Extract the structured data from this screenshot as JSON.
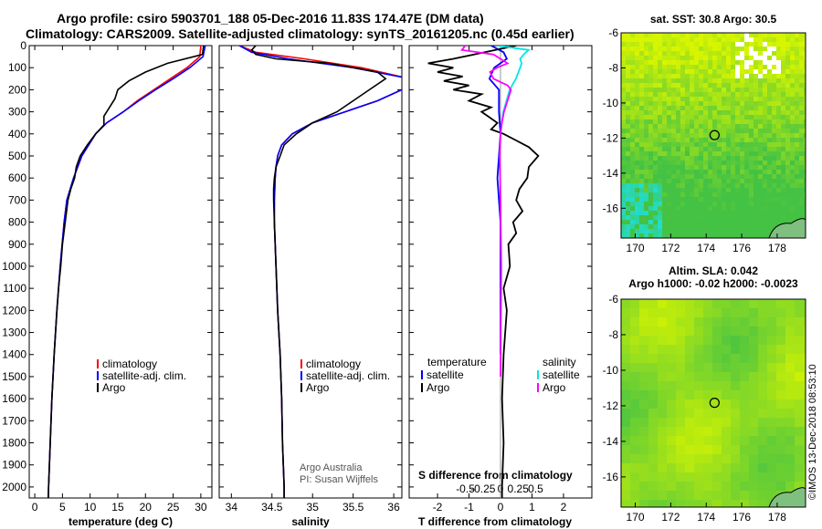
{
  "header": {
    "line1": "Argo profile: csiro 5903701_188 05-Dec-2016 11.83S 174.47E (DM data)",
    "line2": "Climatology: CARS2009. Satellite-adjusted climatology: synTS_20161205.nc (0.45d earlier)"
  },
  "credit": "©IMOS 13-Dec-2018 08:53:10",
  "colors": {
    "climatology": "#ff0000",
    "satellite": "#0000ff",
    "argo": "#000000",
    "salinity_satellite": "#00e5e5",
    "salinity_argo": "#ff00ff",
    "map_green": "#44c244",
    "map_yellow": "#d8f500",
    "map_cyan": "#22ddd0",
    "land": "#7fbf7f"
  },
  "chart_data": [
    {
      "type": "line",
      "name": "temperature-profile",
      "xlabel": "temperature (deg C)",
      "ylabel": "",
      "xlim": [
        -1,
        32
      ],
      "ylim": [
        2050,
        0
      ],
      "xticks": [
        "0",
        "5",
        "10",
        "15",
        "20",
        "25",
        "30"
      ],
      "xtick_values": [
        0,
        5,
        10,
        15,
        20,
        25,
        30
      ],
      "yticks": [
        "0",
        "100",
        "200",
        "300",
        "400",
        "500",
        "600",
        "700",
        "800",
        "900",
        "1000",
        "1100",
        "1200",
        "1300",
        "1400",
        "1500",
        "1600",
        "1700",
        "1800",
        "1900",
        "2000"
      ],
      "ytick_values": [
        0,
        100,
        200,
        300,
        400,
        500,
        600,
        700,
        800,
        900,
        1000,
        1100,
        1200,
        1300,
        1400,
        1500,
        1600,
        1700,
        1800,
        1900,
        2000
      ],
      "legend": {
        "position": "lower-right",
        "entries": [
          "climatology",
          "satellite-adj. clim.",
          "Argo"
        ]
      },
      "series": [
        {
          "name": "climatology",
          "depth": [
            0,
            50,
            100,
            150,
            200,
            250,
            300,
            350,
            400,
            500,
            600,
            700,
            800,
            1000,
            1200,
            1400,
            1600,
            1800,
            2000,
            2050
          ],
          "values": [
            30.0,
            29.8,
            27.5,
            24.5,
            21.5,
            18.5,
            16.0,
            13.0,
            11.0,
            8.5,
            7.0,
            5.8,
            5.3,
            4.6,
            4.0,
            3.5,
            3.1,
            2.8,
            2.5,
            2.45
          ]
        },
        {
          "name": "satellite-adj. clim.",
          "depth": [
            0,
            50,
            100,
            150,
            200,
            250,
            300,
            350,
            400,
            500,
            600,
            700,
            800,
            1000,
            1200,
            1400,
            1600,
            1800,
            2000,
            2050
          ],
          "values": [
            30.8,
            30.4,
            28.0,
            25.0,
            21.8,
            18.8,
            16.0,
            13.0,
            11.0,
            8.5,
            7.0,
            5.8,
            5.3,
            4.6,
            4.0,
            3.5,
            3.1,
            2.8,
            2.5,
            2.45
          ]
        },
        {
          "name": "Argo",
          "depth": [
            0,
            40,
            80,
            120,
            160,
            200,
            240,
            280,
            320,
            360,
            400,
            450,
            500,
            550,
            600,
            650,
            700,
            800,
            900,
            1000,
            1100,
            1200,
            1400,
            1600,
            1800,
            2000,
            2050
          ],
          "values": [
            30.5,
            30.3,
            24.0,
            20.0,
            17.0,
            15.0,
            14.5,
            13.5,
            12.5,
            12.5,
            11.0,
            9.5,
            8.2,
            7.5,
            7.2,
            6.5,
            6.0,
            5.5,
            5.0,
            4.7,
            4.3,
            4.0,
            3.5,
            3.1,
            2.8,
            2.5,
            2.45
          ]
        }
      ]
    },
    {
      "type": "line",
      "name": "salinity-profile",
      "xlabel": "salinity",
      "xlim": [
        33.85,
        36.1
      ],
      "ylim": [
        2050,
        0
      ],
      "xticks": [
        "34",
        "34.5",
        "35",
        "35.5",
        "36"
      ],
      "xtick_values": [
        34,
        34.5,
        35,
        35.5,
        36
      ],
      "annotations": [
        "Argo Australia",
        "PI: Susan Wijffels"
      ],
      "legend": {
        "position": "lower-right",
        "entries": [
          "climatology",
          "satellite-adj. clim.",
          "Argo"
        ]
      },
      "series": [
        {
          "name": "climatology",
          "depth": [
            0,
            30,
            60,
            100,
            150,
            200,
            250,
            300,
            350,
            400,
            450,
            500,
            550,
            600,
            700,
            800,
            1000,
            1200,
            1400,
            1600,
            1800,
            2000,
            2050
          ],
          "values": [
            34.1,
            34.3,
            34.9,
            35.6,
            36.2,
            36.1,
            35.8,
            35.4,
            35.0,
            34.75,
            34.62,
            34.57,
            34.55,
            34.54,
            34.53,
            34.53,
            34.55,
            34.57,
            34.6,
            34.62,
            34.63,
            34.65,
            34.65
          ]
        },
        {
          "name": "satellite-adj. clim.",
          "depth": [
            0,
            30,
            60,
            100,
            150,
            200,
            250,
            300,
            350,
            400,
            450,
            500,
            550,
            600,
            700,
            800,
            1000,
            1200,
            1400,
            1600,
            1800,
            2000,
            2050
          ],
          "values": [
            34.1,
            34.25,
            34.7,
            35.5,
            36.2,
            36.1,
            35.8,
            35.4,
            35.0,
            34.75,
            34.62,
            34.57,
            34.55,
            34.54,
            34.53,
            34.53,
            34.55,
            34.57,
            34.6,
            34.62,
            34.63,
            34.65,
            34.65
          ]
        },
        {
          "name": "Argo",
          "depth": [
            0,
            20,
            40,
            60,
            80,
            100,
            120,
            150,
            200,
            250,
            300,
            350,
            400,
            450,
            500,
            550,
            600,
            650,
            700,
            800,
            1000,
            1200,
            1400,
            1600,
            1800,
            2000,
            2050
          ],
          "values": [
            34.3,
            34.25,
            34.3,
            34.55,
            35.2,
            35.5,
            35.8,
            35.9,
            35.7,
            35.5,
            35.3,
            35.0,
            34.8,
            34.65,
            34.6,
            34.55,
            34.53,
            34.52,
            34.52,
            34.53,
            34.55,
            34.57,
            34.6,
            34.62,
            34.63,
            34.65,
            34.65
          ]
        }
      ]
    },
    {
      "type": "line",
      "name": "difference-profile",
      "xlabel": "T difference from climatology",
      "xlabel_top": "S difference from climatology",
      "xlim": [
        -2.9,
        2.9
      ],
      "ylim": [
        2050,
        0
      ],
      "xticks": [
        "-2",
        "-1",
        "0",
        "1",
        "2"
      ],
      "xtick_values": [
        -2,
        -1,
        0,
        1,
        2
      ],
      "sticks": [
        "-0.5",
        "-0.25",
        "0",
        "0.25",
        "0.5"
      ],
      "stick_values": [
        -0.5,
        -0.25,
        0,
        0.25,
        0.5
      ],
      "legend": {
        "position": "lower-left and lower-right",
        "t_title": "temperature",
        "s_title": "salinity",
        "entries": [
          "satellite",
          "Argo"
        ]
      },
      "series": [
        {
          "name": "T satellite",
          "depth": [
            0,
            30,
            60,
            100,
            150,
            200,
            300,
            400,
            500,
            600,
            700,
            800,
            1000,
            1400
          ],
          "values": [
            -0.3,
            0.1,
            0.2,
            -0.2,
            -0.35,
            -0.05,
            -0.05,
            0.0,
            -0.05,
            -0.1,
            -0.05,
            0.0,
            0.0,
            0.0
          ]
        },
        {
          "name": "T Argo",
          "depth": [
            0,
            30,
            60,
            80,
            100,
            120,
            140,
            160,
            180,
            200,
            220,
            250,
            280,
            300,
            350,
            380,
            400,
            430,
            460,
            500,
            550,
            600,
            650,
            700,
            750,
            800,
            850,
            900,
            1000,
            1100,
            1200,
            1400,
            1600,
            1800,
            2000,
            2050
          ],
          "values": [
            0.5,
            -0.5,
            -1.5,
            -2.3,
            -1.5,
            -2.0,
            -1.2,
            -1.8,
            -1.0,
            -1.5,
            -0.6,
            -1.0,
            -0.3,
            -0.6,
            -0.1,
            -0.3,
            0.1,
            0.5,
            0.9,
            1.2,
            0.9,
            0.85,
            0.6,
            0.5,
            0.7,
            0.4,
            0.5,
            0.25,
            0.3,
            0.1,
            0.2,
            0.1,
            0.05,
            0.1,
            0.05,
            0.05
          ]
        },
        {
          "name": "S satellite",
          "depth": [
            0,
            20,
            40,
            60,
            80,
            100,
            150,
            200,
            300,
            400
          ],
          "values": [
            -0.05,
            0.4,
            0.33,
            0.28,
            0.3,
            0.28,
            0.22,
            0.13,
            0.04,
            0.0
          ]
        },
        {
          "name": "S Argo",
          "depth": [
            0,
            20,
            40,
            60,
            80,
            100,
            120,
            150,
            180,
            200,
            250,
            300,
            350,
            400,
            500,
            700,
            1000,
            1500
          ],
          "values": [
            -0.5,
            -0.55,
            -0.1,
            0.0,
            0.1,
            -0.05,
            -0.15,
            -0.1,
            0.1,
            0.15,
            0.1,
            0.05,
            0.02,
            0.0,
            -0.01,
            0.0,
            0.01,
            0.0
          ]
        }
      ]
    },
    {
      "type": "heatmap",
      "name": "sst-map",
      "title": "sat. SST: 30.8 Argo: 30.5",
      "xlim": [
        169.2,
        179.6
      ],
      "ylim": [
        -17.7,
        -6
      ],
      "xticks": [
        "170",
        "172",
        "174",
        "176",
        "178"
      ],
      "xtick_values": [
        170,
        172,
        174,
        176,
        178
      ],
      "yticks": [
        "-6",
        "-8",
        "-10",
        "-12",
        "-14",
        "-16"
      ],
      "ytick_values": [
        -6,
        -8,
        -10,
        -12,
        -14,
        -16
      ],
      "marker": {
        "lon": 174.47,
        "lat": -11.83
      }
    },
    {
      "type": "heatmap",
      "name": "sla-map",
      "title": "Altim. SLA: 0.042",
      "subtitle": "Argo h1000: -0.02 h2000: -0.0023",
      "xlim": [
        169.2,
        179.6
      ],
      "ylim": [
        -17.7,
        -6
      ],
      "xticks": [
        "170",
        "172",
        "174",
        "176",
        "178"
      ],
      "xtick_values": [
        170,
        172,
        174,
        176,
        178
      ],
      "yticks": [
        "-6",
        "-8",
        "-10",
        "-12",
        "-14",
        "-16"
      ],
      "ytick_values": [
        -6,
        -8,
        -10,
        -12,
        -14,
        -16
      ],
      "marker": {
        "lon": 174.47,
        "lat": -11.83
      }
    }
  ]
}
